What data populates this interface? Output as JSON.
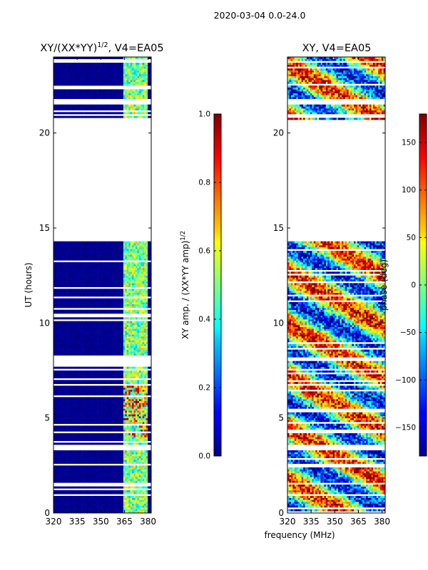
{
  "figure_title": "2020-03-04 0.0-24.0",
  "panels": {
    "left": {
      "title_main": "XY/(XX*YY)",
      "title_sup": "1/2",
      "title_suffix": ", V4=EA05",
      "ylabel": "UT (hours)",
      "yticks": [
        "0",
        "5",
        "10",
        "15",
        "20"
      ],
      "xticks": [
        "320",
        "335",
        "350",
        "365",
        "380"
      ]
    },
    "right": {
      "title": "XY, V4=EA05",
      "yticks": [
        "0",
        "5",
        "10",
        "15",
        "20"
      ],
      "xticks": [
        "320",
        "335",
        "350",
        "365",
        "380"
      ]
    }
  },
  "xlabel": "frequency (MHz)",
  "colorbars": {
    "amp": {
      "label_main": "XY amp. / (XX*YY amp)",
      "label_sup": "1/2",
      "ticks": [
        "0.0",
        "0.2",
        "0.4",
        "0.6",
        "0.8",
        "1.0"
      ]
    },
    "phase": {
      "label": "phase (deg)",
      "ticks": [
        "−150",
        "−100",
        "−50",
        "0",
        "50",
        "100",
        "150"
      ]
    }
  },
  "chart_data": [
    {
      "type": "heatmap",
      "title": "XY/(XX*YY)^1/2, V4=EA05",
      "xlabel": "frequency (MHz)",
      "ylabel": "UT (hours)",
      "xlim": [
        320,
        382
      ],
      "ylim": [
        0,
        24
      ],
      "xticks": [
        320,
        335,
        350,
        365,
        380
      ],
      "yticks": [
        0,
        5,
        10,
        15,
        20
      ],
      "colorbar": {
        "label": "XY amp. / (XX*YY amp)^1/2",
        "range": [
          0.0,
          1.0
        ],
        "ticks": [
          0.0,
          0.2,
          0.4,
          0.6,
          0.8,
          1.0
        ],
        "colormap": "jet"
      },
      "data_ranges_hours": [
        [
          0.0,
          3.3
        ],
        [
          3.6,
          6.7
        ],
        [
          6.8,
          8.0
        ],
        [
          8.2,
          14.3
        ],
        [
          20.7,
          21.5
        ],
        [
          21.8,
          24.0
        ]
      ],
      "gap_hours": [
        [
          14.3,
          20.7
        ]
      ],
      "active_band_mhz": [
        364,
        380
      ],
      "background_value": 0.0,
      "band_values": [
        0.3,
        0.7
      ]
    },
    {
      "type": "heatmap",
      "title": "XY, V4=EA05",
      "xlabel": "frequency (MHz)",
      "xlim": [
        320,
        382
      ],
      "ylim": [
        0,
        24
      ],
      "xticks": [
        320,
        335,
        350,
        365,
        380
      ],
      "yticks": [
        0,
        5,
        10,
        15,
        20
      ],
      "colorbar": {
        "label": "phase (deg)",
        "range": [
          -180,
          180
        ],
        "ticks": [
          -150,
          -100,
          -50,
          0,
          50,
          100,
          150
        ],
        "colormap": "jet"
      },
      "data_ranges_hours": [
        [
          0.0,
          3.3
        ],
        [
          3.6,
          6.7
        ],
        [
          6.8,
          8.0
        ],
        [
          8.2,
          14.3
        ],
        [
          20.7,
          21.5
        ],
        [
          21.8,
          24.0
        ]
      ],
      "gap_hours": [
        [
          14.3,
          20.7
        ]
      ],
      "value_range": [
        -180,
        180
      ]
    }
  ]
}
